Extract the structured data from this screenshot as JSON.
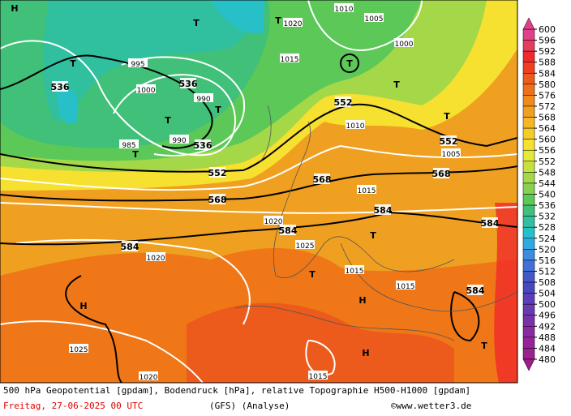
{
  "map": {
    "labels": [
      "536",
      "536",
      "536",
      "552",
      "552",
      "552",
      "568",
      "568",
      "568",
      "584",
      "584",
      "584",
      "584",
      "584",
      "1010",
      "1005",
      "1020",
      "1015",
      "995",
      "1000",
      "990",
      "985",
      "990",
      "1000",
      "1010",
      "1005",
      "1015",
      "1020",
      "1025",
      "1025",
      "1020",
      "1015",
      "1020",
      "1015",
      "1015",
      "T",
      "T",
      "T",
      "T",
      "T",
      "T",
      "T",
      "T",
      "T",
      "T",
      "T",
      "H",
      "H",
      "H",
      "H",
      "T"
    ],
    "colorbar": {
      "levels": [
        600,
        596,
        592,
        588,
        584,
        580,
        576,
        572,
        568,
        564,
        560,
        556,
        552,
        548,
        544,
        540,
        536,
        532,
        528,
        524,
        520,
        516,
        512,
        508,
        504,
        500,
        496,
        492,
        488,
        484,
        480
      ],
      "colors": [
        "#e0408a",
        "#e83a5a",
        "#f02a2a",
        "#ee4020",
        "#ec5a1c",
        "#ee7018",
        "#f08a1a",
        "#f0a020",
        "#f4b824",
        "#f6cc28",
        "#f6e030",
        "#e4e838",
        "#c6e040",
        "#a4d848",
        "#88d050",
        "#5cc858",
        "#40c078",
        "#30c0a0",
        "#28c0c8",
        "#30a8e0",
        "#3c8ce0",
        "#4070d8",
        "#4458c8",
        "#4a48c0",
        "#5a40b8",
        "#6a38b0",
        "#7a30a8",
        "#8a2aa0",
        "#962498",
        "#9a2090",
        "#a01a88"
      ]
    },
    "footer": {
      "line1": "500 hPa Geopotential [gpdam], Bodendruck [hPa], relative Topographie H500-H1000 [gpdam]",
      "date": "Freitag, 27-06-2025  00 UTC",
      "model": "(GFS)   (Analyse)",
      "credit": "©www.wetter3.de"
    }
  }
}
